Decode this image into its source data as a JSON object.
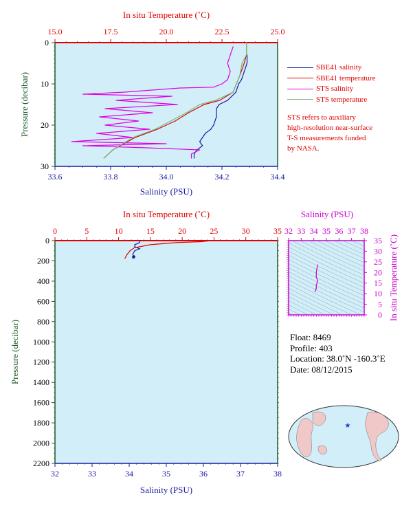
{
  "colors": {
    "background_plot": "#d2eef8",
    "temperature": "#e00000",
    "salinity_axis": "#1a1aa0",
    "sbe41_salinity": "#1a1aa0",
    "sbe41_temperature": "#e00000",
    "sts_salinity": "#e000e0",
    "sts_temperature": "#78b878",
    "ts_axis": "#cc00cc",
    "pressure_axis": "#1a5a2a"
  },
  "top_panel": {
    "top_axis_title": "In situ Temperature (˚C)",
    "bottom_axis_title": "Salinity (PSU)",
    "left_axis_title": "Pressure (decibar)",
    "temp_ticks": [
      "15.0",
      "17.5",
      "20.0",
      "22.5",
      "25.0"
    ],
    "sal_ticks": [
      "33.6",
      "33.8",
      "34.0",
      "34.2",
      "34.4"
    ],
    "pres_ticks": [
      "0",
      "10",
      "20",
      "30"
    ]
  },
  "legend": {
    "items": [
      {
        "label": "SBE41 salinity",
        "color": "#1a1aa0"
      },
      {
        "label": "SBE41 temperature",
        "color": "#e00000"
      },
      {
        "label": "STS salinity",
        "color": "#e000e0"
      },
      {
        "label": "STS temperature",
        "color": "#78b878"
      }
    ]
  },
  "note": {
    "lines": [
      "STS refers to auxiliary",
      "high-resolution near-surface",
      "T-S measurements funded",
      "by NASA."
    ]
  },
  "bottom_panel": {
    "top_axis_title": "In situ Temperature (˚C)",
    "bottom_axis_title": "Salinity (PSU)",
    "left_axis_title": "Pressure (decibar)",
    "temp_ticks": [
      "0",
      "5",
      "10",
      "15",
      "20",
      "25",
      "30",
      "35"
    ],
    "sal_ticks": [
      "32",
      "33",
      "34",
      "35",
      "36",
      "37",
      "38"
    ],
    "pres_ticks": [
      "0",
      "200",
      "400",
      "600",
      "800",
      "1000",
      "1200",
      "1400",
      "1600",
      "1800",
      "2000",
      "2200"
    ]
  },
  "ts_panel": {
    "top_axis_title": "Salinity (PSU)",
    "right_axis_title": "In situ Temperature (˚C)",
    "sal_ticks": [
      "32",
      "33",
      "34",
      "35",
      "36",
      "37",
      "38"
    ],
    "temp_ticks": [
      "35",
      "30",
      "25",
      "20",
      "15",
      "10",
      "5",
      "0"
    ]
  },
  "info": {
    "float_label": "Float:",
    "float_value": "8469",
    "profile_label": "Profile:",
    "profile_value": "403",
    "location_label": "Location:",
    "location_value": "38.0˚N  -160.3˚E",
    "date_label": "Date:",
    "date_value": "08/12/2015"
  },
  "chart_data": [
    {
      "type": "line",
      "panel": "top",
      "xlim_salinity": [
        33.6,
        34.4
      ],
      "xlim_temperature": [
        15.0,
        25.0
      ],
      "ylim_pressure": [
        0,
        30
      ],
      "y_inverted": true,
      "series": [
        {
          "name": "SBE41 salinity",
          "axis": "salinity",
          "points": [
            [
              34.29,
              3
            ],
            [
              34.29,
              5
            ],
            [
              34.28,
              7
            ],
            [
              34.27,
              9
            ],
            [
              34.26,
              10
            ],
            [
              34.25,
              12
            ],
            [
              34.22,
              14
            ],
            [
              34.19,
              15
            ],
            [
              34.18,
              16
            ],
            [
              34.18,
              18
            ],
            [
              34.17,
              20
            ],
            [
              34.16,
              21
            ],
            [
              34.14,
              22
            ],
            [
              34.13,
              23
            ],
            [
              34.12,
              24
            ],
            [
              34.13,
              25
            ],
            [
              34.11,
              26
            ],
            [
              34.1,
              27
            ],
            [
              34.1,
              28
            ]
          ]
        },
        {
          "name": "SBE41 temperature",
          "axis": "temperature",
          "points": [
            [
              23.6,
              0
            ],
            [
              23.6,
              3
            ],
            [
              23.5,
              5
            ],
            [
              23.3,
              8
            ],
            [
              23.0,
              12
            ],
            [
              22.4,
              14
            ],
            [
              21.7,
              15
            ],
            [
              21.0,
              17
            ],
            [
              20.4,
              19
            ],
            [
              19.6,
              21
            ],
            [
              18.6,
              23
            ],
            [
              17.6,
              26
            ],
            [
              17.2,
              28
            ]
          ]
        },
        {
          "name": "STS salinity",
          "axis": "salinity",
          "points": [
            [
              34.24,
              1
            ],
            [
              34.23,
              3
            ],
            [
              34.22,
              5
            ],
            [
              34.23,
              7
            ],
            [
              34.22,
              9
            ],
            [
              34.2,
              10
            ],
            [
              34.17,
              10.8
            ],
            [
              34.05,
              11
            ],
            [
              33.85,
              12
            ],
            [
              33.7,
              12.5
            ],
            [
              34.02,
              13
            ],
            [
              33.82,
              14
            ],
            [
              34.04,
              15
            ],
            [
              33.78,
              16
            ],
            [
              33.95,
              17
            ],
            [
              33.76,
              18
            ],
            [
              33.9,
              19
            ],
            [
              33.78,
              20
            ],
            [
              33.94,
              21
            ],
            [
              33.75,
              22
            ],
            [
              33.88,
              23
            ],
            [
              33.66,
              24
            ],
            [
              34.0,
              24.5
            ],
            [
              33.7,
              25
            ],
            [
              33.93,
              25.5
            ],
            [
              34.12,
              26
            ],
            [
              34.09,
              27
            ],
            [
              34.09,
              28
            ]
          ]
        },
        {
          "name": "STS temperature",
          "axis": "temperature",
          "points": [
            [
              23.6,
              0
            ],
            [
              23.6,
              3
            ],
            [
              23.4,
              5
            ],
            [
              23.3,
              8
            ],
            [
              23.0,
              12
            ],
            [
              22.2,
              14
            ],
            [
              21.5,
              15
            ],
            [
              20.9,
              17
            ],
            [
              20.2,
              19
            ],
            [
              19.5,
              21
            ],
            [
              18.5,
              23
            ],
            [
              17.6,
              26
            ],
            [
              17.2,
              28
            ]
          ]
        }
      ]
    },
    {
      "type": "line",
      "panel": "bottom",
      "xlim_salinity": [
        32,
        38
      ],
      "xlim_temperature": [
        0,
        35
      ],
      "ylim_pressure": [
        0,
        2200
      ],
      "y_inverted": true,
      "series": [
        {
          "name": "SBE41 salinity",
          "axis": "salinity",
          "points": [
            [
              34.29,
              0
            ],
            [
              34.28,
              20
            ],
            [
              34.15,
              40
            ],
            [
              34.15,
              60
            ],
            [
              34.28,
              80
            ],
            [
              34.15,
              100
            ],
            [
              34.1,
              130
            ],
            [
              34.12,
              160
            ],
            [
              34.1,
              175
            ]
          ]
        },
        {
          "name": "SBE41 temperature",
          "axis": "temperature",
          "points": [
            [
              24.5,
              0
            ],
            [
              23.0,
              10
            ],
            [
              19.0,
              20
            ],
            [
              15.0,
              40
            ],
            [
              12.5,
              70
            ],
            [
              11.8,
              100
            ],
            [
              11.3,
              140
            ],
            [
              11.0,
              175
            ]
          ]
        }
      ]
    },
    {
      "type": "scatter",
      "panel": "ts",
      "xlim_salinity": [
        32,
        38
      ],
      "ylim_temperature": [
        0,
        35
      ],
      "series": [
        {
          "name": "SBE41 T-S",
          "points": [
            [
              34.1,
              11
            ],
            [
              34.2,
              12.5
            ],
            [
              34.2,
              14
            ],
            [
              34.3,
              16
            ],
            [
              34.2,
              18
            ],
            [
              34.2,
              20
            ],
            [
              34.25,
              22
            ],
            [
              34.3,
              23.6
            ]
          ]
        }
      ]
    }
  ]
}
